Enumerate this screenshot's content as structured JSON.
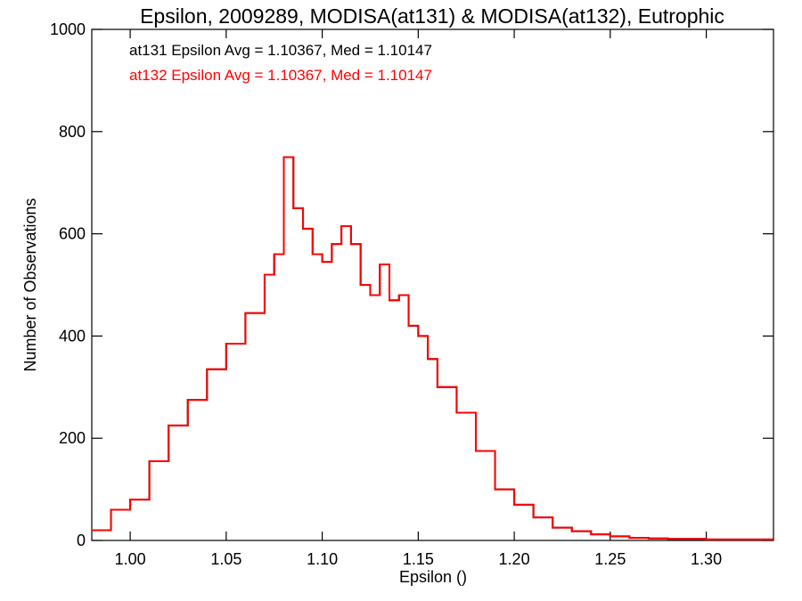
{
  "chart_data": {
    "type": "line",
    "title": "Epsilon, 2009289, MODISA(at131) & MODISA(at132), Eutrophic",
    "xlabel": "Epsilon ()",
    "ylabel": "Number of Observations",
    "xlim": [
      0.98,
      1.335
    ],
    "ylim": [
      0,
      1000
    ],
    "xticks": [
      "1.00",
      "1.05",
      "1.10",
      "1.15",
      "1.20",
      "1.25",
      "1.30"
    ],
    "yticks": [
      "0",
      "200",
      "400",
      "600",
      "800",
      "1000"
    ],
    "grid": false,
    "legend_position": "top-left",
    "annotations": [
      {
        "text": "at131 Epsilon Avg = 1.10367, Med = 1.10147",
        "color": "#000000"
      },
      {
        "text": "at132 Epsilon Avg = 1.10367, Med = 1.10147",
        "color": "#ff0000"
      }
    ],
    "series": [
      {
        "color": "#ff0000",
        "x": [
          0.98,
          0.99,
          1.0,
          1.01,
          1.02,
          1.03,
          1.04,
          1.05,
          1.06,
          1.07,
          1.075,
          1.08,
          1.085,
          1.09,
          1.095,
          1.1,
          1.105,
          1.11,
          1.115,
          1.12,
          1.125,
          1.13,
          1.135,
          1.14,
          1.145,
          1.15,
          1.155,
          1.16,
          1.17,
          1.18,
          1.19,
          1.2,
          1.21,
          1.22,
          1.23,
          1.24,
          1.25,
          1.26,
          1.27,
          1.28,
          1.3,
          1.335
        ],
        "y": [
          20,
          60,
          80,
          155,
          225,
          275,
          335,
          385,
          445,
          520,
          560,
          750,
          650,
          610,
          560,
          545,
          580,
          615,
          580,
          500,
          480,
          540,
          470,
          480,
          420,
          400,
          355,
          300,
          250,
          175,
          100,
          70,
          45,
          25,
          18,
          12,
          8,
          5,
          4,
          3,
          2,
          1
        ]
      },
      {
        "color": "#000000",
        "x": [
          0.98,
          0.99,
          1.0,
          1.01,
          1.02,
          1.03,
          1.04,
          1.05,
          1.06,
          1.07,
          1.075,
          1.08,
          1.085,
          1.09,
          1.095,
          1.1,
          1.105,
          1.11,
          1.115,
          1.12,
          1.125,
          1.13,
          1.135,
          1.14,
          1.145,
          1.15,
          1.155,
          1.16,
          1.17,
          1.18,
          1.19,
          1.2,
          1.21,
          1.22,
          1.23,
          1.24,
          1.25,
          1.26,
          1.27,
          1.28,
          1.3,
          1.335
        ],
        "y": [
          20,
          60,
          80,
          155,
          225,
          275,
          335,
          385,
          445,
          520,
          560,
          750,
          650,
          610,
          560,
          545,
          580,
          615,
          580,
          500,
          480,
          540,
          470,
          480,
          420,
          400,
          355,
          300,
          250,
          175,
          100,
          70,
          45,
          25,
          18,
          12,
          8,
          5,
          4,
          3,
          2,
          1
        ]
      }
    ]
  }
}
